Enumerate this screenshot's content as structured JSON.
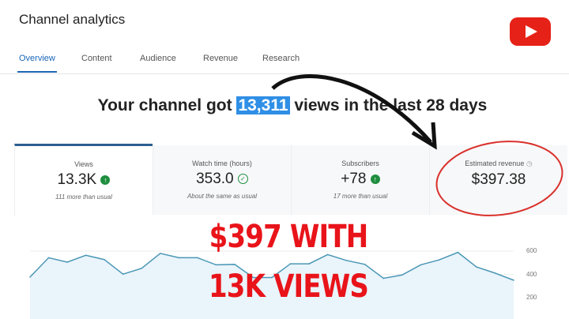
{
  "header": {
    "title": "Channel analytics",
    "tabs": [
      "Overview",
      "Content",
      "Audience",
      "Revenue",
      "Research"
    ],
    "active_tab": "Overview",
    "logo": "youtube-logo"
  },
  "headline": {
    "before": "Your channel got ",
    "highlight": "13,311",
    "after": " views in the last 28 days"
  },
  "cards": [
    {
      "label": "Views",
      "value": "13.3K",
      "indicator": "up-arrow",
      "note": "111 more than usual"
    },
    {
      "label": "Watch time (hours)",
      "value": "353.0",
      "indicator": "check",
      "note": "About the same as usual"
    },
    {
      "label": "Subscribers",
      "value": "+78",
      "indicator": "up-arrow",
      "note": "17 more than usual"
    },
    {
      "label": "Estimated revenue",
      "value": "$397.38",
      "indicator": "clock",
      "note": ""
    }
  ],
  "overlay": {
    "line1": "$397 WITH",
    "line2": "13K VIEWS",
    "color": "#e8141a"
  },
  "chart_data": {
    "type": "area",
    "yticks": [
      "600",
      "400",
      "200"
    ],
    "ylim": [
      100,
      650
    ],
    "grid": true,
    "values": [
      377,
      543,
      505,
      564,
      527,
      402,
      452,
      580,
      543,
      543,
      482,
      486,
      373,
      373,
      491,
      491,
      570,
      520,
      486,
      366,
      395,
      482,
      525,
      589,
      464,
      411,
      350
    ],
    "color": "#4a97b5"
  }
}
